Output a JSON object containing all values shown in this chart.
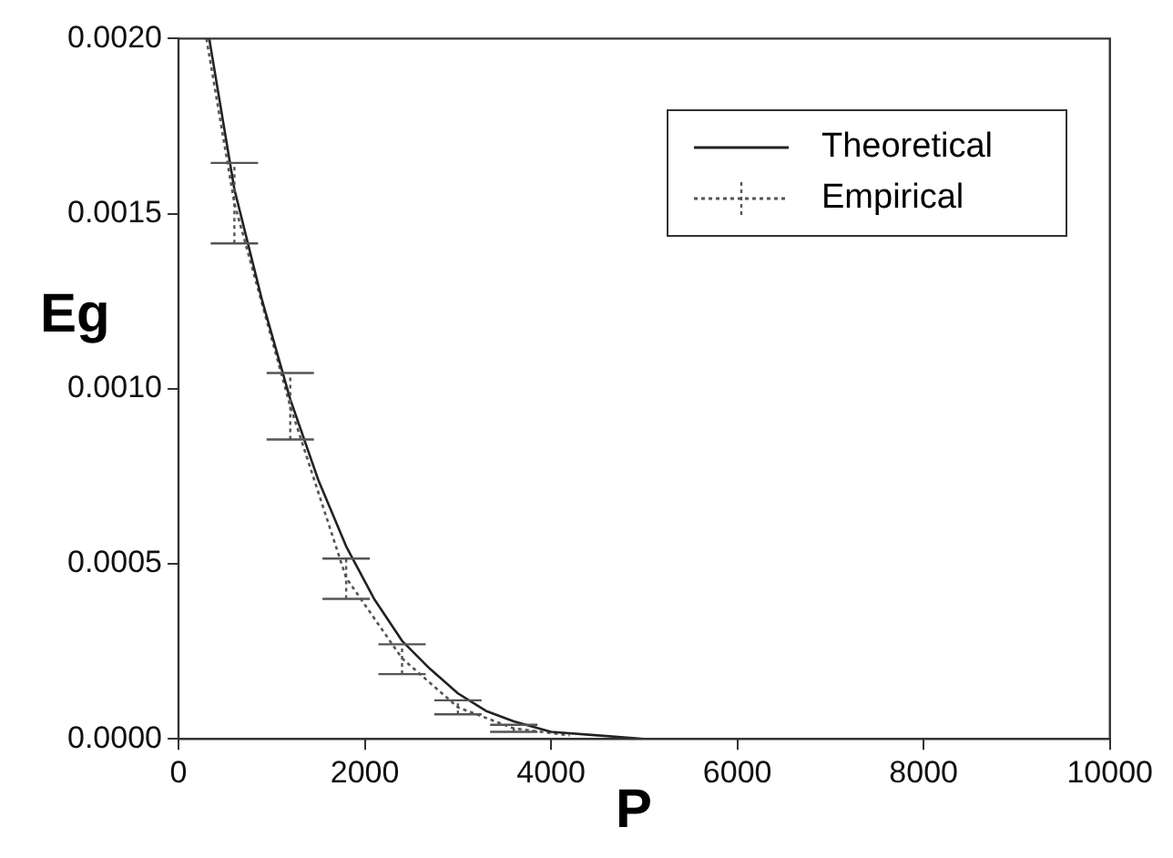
{
  "chart_data": {
    "type": "line",
    "xlabel": "P",
    "ylabel": "Eg",
    "xlim": [
      0,
      10000
    ],
    "ylim": [
      0,
      0.002
    ],
    "xticks": [
      0,
      2000,
      4000,
      6000,
      8000,
      10000
    ],
    "yticks": [
      {
        "value": 0,
        "label": "0.0000"
      },
      {
        "value": 0.0005,
        "label": "0.0005"
      },
      {
        "value": 0.001,
        "label": "0.0010"
      },
      {
        "value": 0.0015,
        "label": "0.0015"
      },
      {
        "value": 0.002,
        "label": "0.0020"
      }
    ],
    "grid": false,
    "legend": "top right",
    "series": [
      {
        "name": "Theoretical",
        "color": "#222222",
        "line_style": "solid",
        "x": [
          330,
          600,
          900,
          1200,
          1500,
          1800,
          2100,
          2400,
          2700,
          3000,
          3300,
          3600,
          4000,
          4500,
          5000,
          6000,
          8000,
          10000
        ],
        "values": [
          0.002,
          0.00157,
          0.00125,
          0.00097,
          0.00074,
          0.00055,
          0.0004,
          0.00028,
          0.0002,
          0.00013,
          8e-05,
          5e-05,
          2e-05,
          1e-05,
          0,
          0,
          0,
          0
        ]
      },
      {
        "name": "Empirical",
        "color": "#555555",
        "line_style": "dotted",
        "x": [
          300,
          600,
          1200,
          1800,
          2400,
          3000,
          3600,
          4200
        ],
        "values": [
          0.002,
          0.00153,
          0.00095,
          0.00046,
          0.00023,
          9e-05,
          3e-05,
          1e-05
        ],
        "errors": [
          null,
          [
            0.001415,
            0.001645
          ],
          [
            0.000855,
            0.001045
          ],
          [
            0.0004,
            0.000515
          ],
          [
            0.000185,
            0.00027
          ],
          [
            7e-05,
            0.00011
          ],
          [
            2e-05,
            4e-05
          ],
          null
        ]
      }
    ]
  }
}
